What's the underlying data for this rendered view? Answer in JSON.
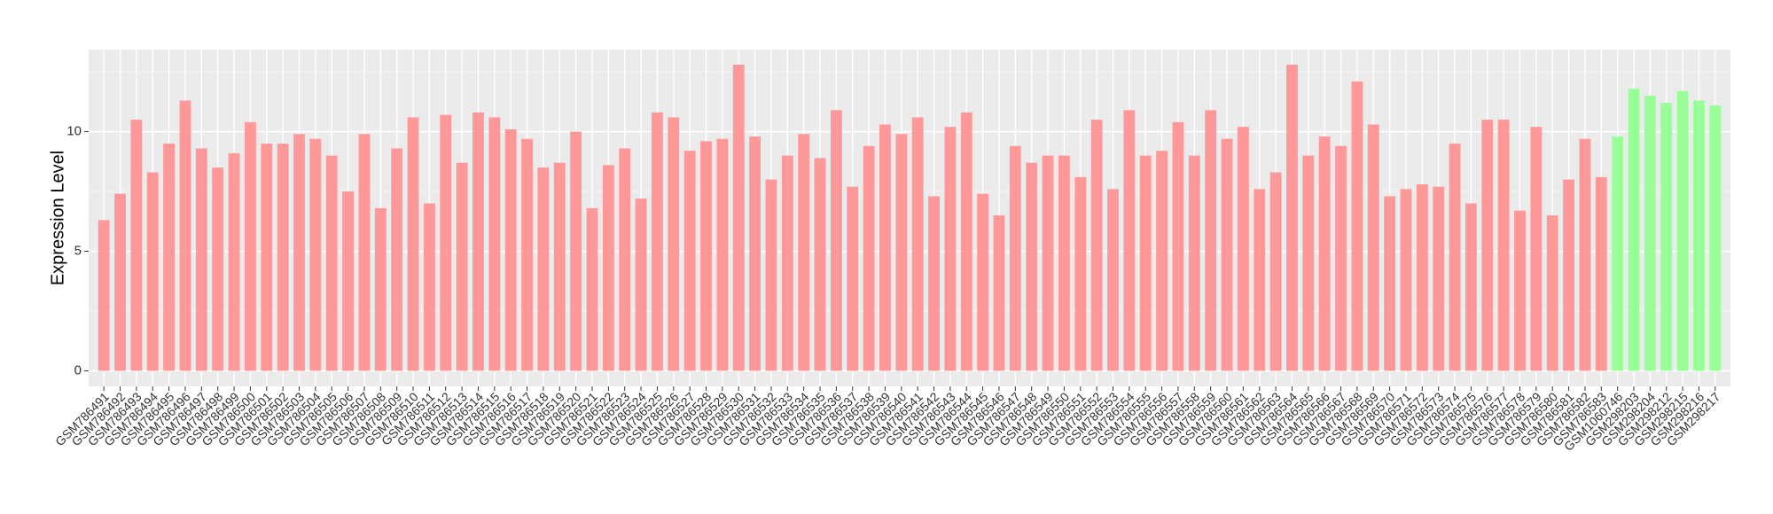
{
  "chart_data": {
    "type": "bar",
    "y_label": "Expression Level",
    "categories": [
      "GSM786491",
      "GSM786492",
      "GSM786493",
      "GSM786494",
      "GSM786495",
      "GSM786496",
      "GSM786497",
      "GSM786498",
      "GSM786499",
      "GSM786500",
      "GSM786501",
      "GSM786502",
      "GSM786503",
      "GSM786504",
      "GSM786505",
      "GSM786506",
      "GSM786507",
      "GSM786508",
      "GSM786509",
      "GSM786510",
      "GSM786511",
      "GSM786512",
      "GSM786513",
      "GSM786514",
      "GSM786515",
      "GSM786516",
      "GSM786517",
      "GSM786518",
      "GSM786519",
      "GSM786520",
      "GSM786521",
      "GSM786522",
      "GSM786523",
      "GSM786524",
      "GSM786525",
      "GSM786526",
      "GSM786527",
      "GSM786528",
      "GSM786529",
      "GSM786530",
      "GSM786531",
      "GSM786532",
      "GSM786533",
      "GSM786534",
      "GSM786535",
      "GSM786536",
      "GSM786537",
      "GSM786538",
      "GSM786539",
      "GSM786540",
      "GSM786541",
      "GSM786542",
      "GSM786543",
      "GSM786544",
      "GSM786545",
      "GSM786546",
      "GSM786547",
      "GSM786548",
      "GSM786549",
      "GSM786550",
      "GSM786551",
      "GSM786552",
      "GSM786553",
      "GSM786554",
      "GSM786555",
      "GSM786556",
      "GSM786557",
      "GSM786558",
      "GSM786559",
      "GSM786560",
      "GSM786561",
      "GSM786562",
      "GSM786563",
      "GSM786564",
      "GSM786565",
      "GSM786566",
      "GSM786567",
      "GSM786568",
      "GSM786569",
      "GSM786570",
      "GSM786571",
      "GSM786572",
      "GSM786573",
      "GSM786574",
      "GSM786575",
      "GSM786576",
      "GSM786577",
      "GSM786578",
      "GSM786579",
      "GSM786580",
      "GSM786581",
      "GSM786582",
      "GSM786583",
      "GSM1060746",
      "GSM298203",
      "GSM298204",
      "GSM298212",
      "GSM298215",
      "GSM298216",
      "GSM298217"
    ],
    "values": [
      6.3,
      7.4,
      10.5,
      8.3,
      9.5,
      11.3,
      9.3,
      8.5,
      9.1,
      10.4,
      9.5,
      9.5,
      9.9,
      9.7,
      9.0,
      7.5,
      9.9,
      6.8,
      9.3,
      10.6,
      7.0,
      10.7,
      8.7,
      10.8,
      10.6,
      10.1,
      9.7,
      8.5,
      8.7,
      10.0,
      6.8,
      8.6,
      9.3,
      7.2,
      10.8,
      10.6,
      9.2,
      9.6,
      9.7,
      12.8,
      9.8,
      8.0,
      9.0,
      9.9,
      8.9,
      10.9,
      7.7,
      9.4,
      10.3,
      9.9,
      10.6,
      7.3,
      10.2,
      10.8,
      7.4,
      6.5,
      9.4,
      8.7,
      9.0,
      9.0,
      8.1,
      10.5,
      7.6,
      10.9,
      9.0,
      9.2,
      10.4,
      9.0,
      10.9,
      9.7,
      10.2,
      7.6,
      8.3,
      12.8,
      9.0,
      9.8,
      9.4,
      12.1,
      10.3,
      7.3,
      7.6,
      7.8,
      7.7,
      9.5,
      7.0,
      10.5,
      10.5,
      6.7,
      10.2,
      6.5,
      8.0,
      9.7,
      8.1,
      9.8,
      11.8,
      11.5,
      11.2,
      11.7,
      11.3,
      11.1
    ],
    "colors": [
      "#ff9999",
      "#ff9999",
      "#ff9999",
      "#ff9999",
      "#ff9999",
      "#ff9999",
      "#ff9999",
      "#ff9999",
      "#ff9999",
      "#ff9999",
      "#ff9999",
      "#ff9999",
      "#ff9999",
      "#ff9999",
      "#ff9999",
      "#ff9999",
      "#ff9999",
      "#ff9999",
      "#ff9999",
      "#ff9999",
      "#ff9999",
      "#ff9999",
      "#ff9999",
      "#ff9999",
      "#ff9999",
      "#ff9999",
      "#ff9999",
      "#ff9999",
      "#ff9999",
      "#ff9999",
      "#ff9999",
      "#ff9999",
      "#ff9999",
      "#ff9999",
      "#ff9999",
      "#ff9999",
      "#ff9999",
      "#ff9999",
      "#ff9999",
      "#ff9999",
      "#ff9999",
      "#ff9999",
      "#ff9999",
      "#ff9999",
      "#ff9999",
      "#ff9999",
      "#ff9999",
      "#ff9999",
      "#ff9999",
      "#ff9999",
      "#ff9999",
      "#ff9999",
      "#ff9999",
      "#ff9999",
      "#ff9999",
      "#ff9999",
      "#ff9999",
      "#ff9999",
      "#ff9999",
      "#ff9999",
      "#ff9999",
      "#ff9999",
      "#ff9999",
      "#ff9999",
      "#ff9999",
      "#ff9999",
      "#ff9999",
      "#ff9999",
      "#ff9999",
      "#ff9999",
      "#ff9999",
      "#ff9999",
      "#ff9999",
      "#ff9999",
      "#ff9999",
      "#ff9999",
      "#ff9999",
      "#ff9999",
      "#ff9999",
      "#ff9999",
      "#ff9999",
      "#ff9999",
      "#ff9999",
      "#ff9999",
      "#ff9999",
      "#ff9999",
      "#ff9999",
      "#ff9999",
      "#ff9999",
      "#ff9999",
      "#ff9999",
      "#ff9999",
      "#ff9999",
      "#99ff99",
      "#99ff99",
      "#99ff99",
      "#99ff99",
      "#99ff99",
      "#99ff99",
      "#99ff99"
    ],
    "ylim": [
      -0.65,
      13.43
    ],
    "yticks": [
      0,
      5,
      10
    ],
    "grid": true
  }
}
